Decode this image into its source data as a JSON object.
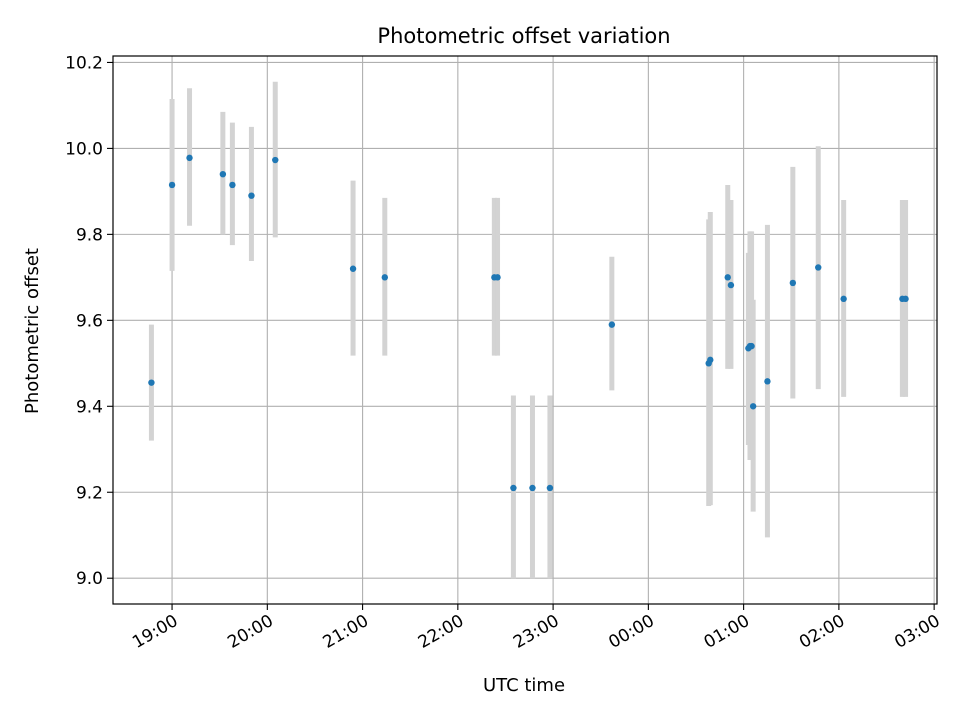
{
  "chart_data": {
    "type": "scatter",
    "title": "Photometric offset variation",
    "xlabel": "UTC time",
    "ylabel": "Photometric offset",
    "x_tick_labels": [
      "19:00",
      "20:00",
      "21:00",
      "22:00",
      "23:00",
      "00:00",
      "01:00",
      "02:00",
      "03:00"
    ],
    "x_tick_hours": [
      19,
      20,
      21,
      22,
      23,
      24,
      25,
      26,
      27
    ],
    "xlim": [
      18.38,
      27.03
    ],
    "y_ticks": [
      9.0,
      9.2,
      9.4,
      9.6,
      9.8,
      10.0,
      10.2
    ],
    "y_tick_labels": [
      "9.0",
      "9.2",
      "9.4",
      "9.6",
      "9.8",
      "10.0",
      "10.2"
    ],
    "ylim": [
      8.94,
      10.215
    ],
    "grid": true,
    "colors": {
      "point": "#1f77b4",
      "errorbar": "#d3d3d3",
      "grid": "#b0b0b0"
    },
    "points": [
      {
        "time": "18:47",
        "y": 9.455,
        "err_low": 9.32,
        "err_high": 9.59
      },
      {
        "time": "19:00",
        "y": 9.915,
        "err_low": 9.715,
        "err_high": 10.115
      },
      {
        "time": "19:11",
        "y": 9.978,
        "err_low": 9.82,
        "err_high": 10.14
      },
      {
        "time": "19:32",
        "y": 9.94,
        "err_low": 9.8,
        "err_high": 10.085
      },
      {
        "time": "19:38",
        "y": 9.915,
        "err_low": 9.775,
        "err_high": 10.06
      },
      {
        "time": "19:50",
        "y": 9.89,
        "err_low": 9.738,
        "err_high": 10.05
      },
      {
        "time": "20:05",
        "y": 9.973,
        "err_low": 9.793,
        "err_high": 10.155
      },
      {
        "time": "20:54",
        "y": 9.72,
        "err_low": 9.518,
        "err_high": 9.925
      },
      {
        "time": "21:14",
        "y": 9.7,
        "err_low": 9.518,
        "err_high": 9.885
      },
      {
        "time": "22:23",
        "y": 9.7,
        "err_low": 9.518,
        "err_high": 9.885
      },
      {
        "time": "22:25",
        "y": 9.7,
        "err_low": 9.518,
        "err_high": 9.885
      },
      {
        "time": "22:35",
        "y": 9.21,
        "err_low": 9.0,
        "err_high": 9.425
      },
      {
        "time": "22:47",
        "y": 9.21,
        "err_low": 9.0,
        "err_high": 9.425
      },
      {
        "time": "22:58",
        "y": 9.21,
        "err_low": 9.0,
        "err_high": 9.425
      },
      {
        "time": "23:37",
        "y": 9.59,
        "err_low": 9.437,
        "err_high": 9.748
      },
      {
        "time": "00:38",
        "y": 9.5,
        "err_low": 9.168,
        "err_high": 9.835
      },
      {
        "time": "00:39",
        "y": 9.508,
        "err_low": 9.17,
        "err_high": 9.852
      },
      {
        "time": "00:50",
        "y": 9.7,
        "err_low": 9.487,
        "err_high": 9.915
      },
      {
        "time": "00:52",
        "y": 9.682,
        "err_low": 9.487,
        "err_high": 9.88
      },
      {
        "time": "01:03",
        "y": 9.535,
        "err_low": 9.31,
        "err_high": 9.757
      },
      {
        "time": "01:04",
        "y": 9.54,
        "err_low": 9.275,
        "err_high": 9.807
      },
      {
        "time": "01:05",
        "y": 9.54,
        "err_low": 9.275,
        "err_high": 9.807
      },
      {
        "time": "01:06",
        "y": 9.4,
        "err_low": 9.155,
        "err_high": 9.648
      },
      {
        "time": "01:15",
        "y": 9.458,
        "err_low": 9.095,
        "err_high": 9.822
      },
      {
        "time": "01:31",
        "y": 9.687,
        "err_low": 9.418,
        "err_high": 9.957
      },
      {
        "time": "01:47",
        "y": 9.723,
        "err_low": 9.44,
        "err_high": 10.005
      },
      {
        "time": "02:03",
        "y": 9.65,
        "err_low": 9.422,
        "err_high": 9.88
      },
      {
        "time": "02:40",
        "y": 9.65,
        "err_low": 9.422,
        "err_high": 9.88
      },
      {
        "time": "02:42",
        "y": 9.65,
        "err_low": 9.422,
        "err_high": 9.88
      }
    ]
  }
}
